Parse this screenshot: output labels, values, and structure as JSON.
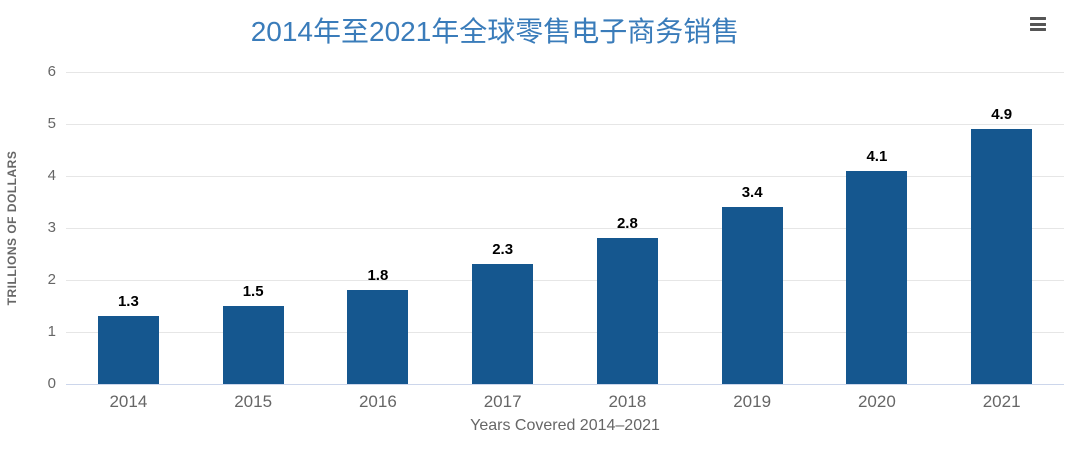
{
  "header": {
    "title": "2014年至2021年全球零售电子商务销售",
    "menu_icon": "hamburger-menu-icon"
  },
  "chart_data": {
    "type": "bar",
    "title": "2014年至2021年全球零售电子商务销售",
    "categories": [
      "2014",
      "2015",
      "2016",
      "2017",
      "2018",
      "2019",
      "2020",
      "2021"
    ],
    "values": [
      1.3,
      1.5,
      1.8,
      2.3,
      2.8,
      3.4,
      4.1,
      4.9
    ],
    "data_labels": [
      "1.3",
      "1.5",
      "1.8",
      "2.3",
      "2.8",
      "3.4",
      "4.1",
      "4.9"
    ],
    "xlabel": "Years Covered 2014–2021",
    "ylabel": "TRILLIONS OF DOLLARS",
    "ylim": [
      0,
      6
    ],
    "yticks": [
      0,
      1,
      2,
      3,
      4,
      5,
      6
    ],
    "grid": true,
    "legend": "none"
  },
  "colors": {
    "bar": "#15578F",
    "title": "#3A7CBA",
    "gridline": "#e6e6e6",
    "axis_line": "#ccd6eb",
    "tick_label": "#666666",
    "data_label": "#000000",
    "menu_icon": "#555555"
  }
}
